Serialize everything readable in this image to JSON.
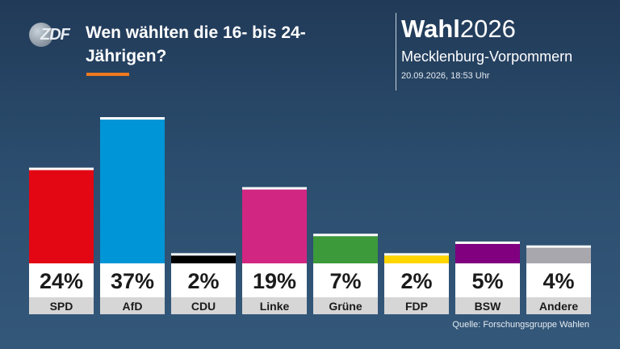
{
  "header": {
    "logo_text": "ZDF",
    "title": "Wen wählten die 16- bis 24-Jährigen?",
    "brand_bold": "Wahl",
    "brand_year": "2026",
    "region": "Mecklenburg-Vorpommern",
    "timestamp": "20.09.2026, 18:53 Uhr"
  },
  "chart_data": {
    "type": "bar",
    "title": "Wen wählten die 16- bis 24-Jährigen?",
    "categories": [
      "SPD",
      "AfD",
      "CDU",
      "Linke",
      "Grüne",
      "FDP",
      "BSW",
      "Andere"
    ],
    "values": [
      24,
      37,
      2,
      19,
      7,
      2,
      5,
      4
    ],
    "value_labels": [
      "24%",
      "37%",
      "2%",
      "19%",
      "7%",
      "2%",
      "5%",
      "4%"
    ],
    "colors": [
      "#e30613",
      "#0095d6",
      "#000000",
      "#d22683",
      "#3c9a3a",
      "#ffd500",
      "#800080",
      "#a7a7ad"
    ],
    "ylim": [
      0,
      37
    ],
    "grid": false,
    "legend": "none"
  },
  "footer": {
    "source": "Quelle: Forschungsgruppe Wahlen"
  }
}
